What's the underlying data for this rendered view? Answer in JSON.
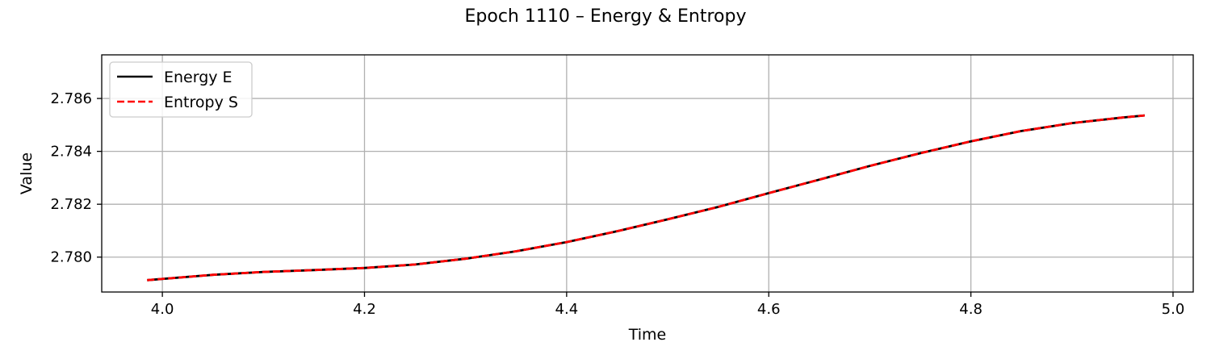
{
  "chart_data": {
    "type": "line",
    "title": "Epoch 1110 – Energy & Entropy",
    "xlabel": "Time",
    "ylabel": "Value",
    "xlim": [
      3.94,
      5.02
    ],
    "ylim": [
      2.77868,
      2.78765
    ],
    "xticks": [
      4.0,
      4.2,
      4.4,
      4.6,
      4.8,
      5.0
    ],
    "xtick_labels": [
      "4.0",
      "4.2",
      "4.4",
      "4.6",
      "4.8",
      "5.0"
    ],
    "yticks": [
      2.78,
      2.782,
      2.784,
      2.786
    ],
    "ytick_labels": [
      "2.780",
      "2.782",
      "2.784",
      "2.786"
    ],
    "grid": true,
    "legend_position": "top-left",
    "series": [
      {
        "name": "Energy E",
        "color": "#000000",
        "style": "solid",
        "x": [
          3.985,
          4.05,
          4.1,
          4.15,
          4.2,
          4.25,
          4.3,
          4.35,
          4.4,
          4.45,
          4.5,
          4.55,
          4.6,
          4.65,
          4.7,
          4.75,
          4.8,
          4.85,
          4.9,
          4.95,
          4.972
        ],
        "y": [
          2.77913,
          2.77933,
          2.77944,
          2.77951,
          2.77959,
          2.77972,
          2.77994,
          2.78022,
          2.78057,
          2.78098,
          2.78143,
          2.7819,
          2.78242,
          2.78293,
          2.78345,
          2.78393,
          2.78438,
          2.78477,
          2.78507,
          2.78528,
          2.78536
        ]
      },
      {
        "name": "Entropy S",
        "color": "#ff0000",
        "style": "dashed",
        "x": [
          3.985,
          4.05,
          4.1,
          4.15,
          4.2,
          4.25,
          4.3,
          4.35,
          4.4,
          4.45,
          4.5,
          4.55,
          4.6,
          4.65,
          4.7,
          4.75,
          4.8,
          4.85,
          4.9,
          4.95,
          4.972
        ],
        "y": [
          2.77913,
          2.77933,
          2.77944,
          2.77951,
          2.77959,
          2.77972,
          2.77994,
          2.78022,
          2.78057,
          2.78098,
          2.78143,
          2.7819,
          2.78242,
          2.78293,
          2.78345,
          2.78393,
          2.78438,
          2.78477,
          2.78507,
          2.78528,
          2.78536
        ]
      }
    ]
  }
}
